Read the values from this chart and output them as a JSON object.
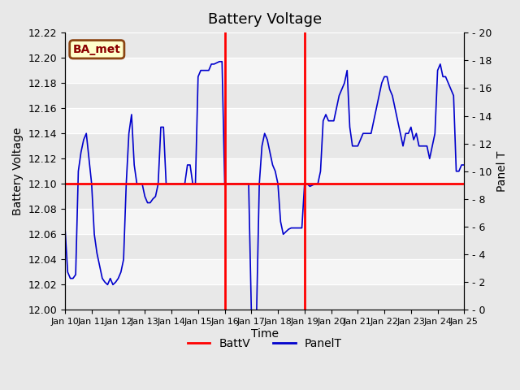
{
  "title": "Battery Voltage",
  "xlabel": "Time",
  "ylabel_left": "Battery Voltage",
  "ylabel_right": "Panel T",
  "ylim_left": [
    12.0,
    12.22
  ],
  "ylim_right": [
    0,
    20
  ],
  "yticks_left": [
    12.0,
    12.02,
    12.04,
    12.06,
    12.08,
    12.1,
    12.12,
    12.14,
    12.16,
    12.18,
    12.2,
    12.22
  ],
  "yticks_right": [
    0,
    2,
    4,
    6,
    8,
    10,
    12,
    14,
    16,
    18,
    20
  ],
  "xlim": [
    0,
    15
  ],
  "xtick_labels": [
    "Jan 10",
    "Jan 11",
    "Jan 12",
    "Jan 13",
    "Jan 14",
    "Jan 15",
    "Jan 16",
    "Jan 17",
    "Jan 18",
    "Jan 19",
    "Jan 20",
    "Jan 21",
    "Jan 22",
    "Jan 23",
    "Jan 24",
    "Jan 25"
  ],
  "crosshair_x1": 6,
  "crosshair_x2": 9,
  "crosshair_y": 12.1,
  "bg_color": "#e8e8e8",
  "band_color": "#f5f5f5",
  "label_box_text": "BA_met",
  "label_box_bg": "#ffffcc",
  "label_box_border": "#8B4513",
  "panel_t_color": "#0000cc",
  "battv_color": "#ff0000",
  "panel_t_data_x": [
    0,
    0.1,
    0.2,
    0.3,
    0.4,
    0.5,
    0.6,
    0.7,
    0.8,
    0.9,
    1.0,
    1.1,
    1.2,
    1.3,
    1.4,
    1.5,
    1.6,
    1.7,
    1.8,
    1.9,
    2.0,
    2.1,
    2.2,
    2.3,
    2.4,
    2.5,
    2.6,
    2.7,
    2.8,
    2.9,
    3.0,
    3.1,
    3.2,
    3.3,
    3.4,
    3.5,
    3.6,
    3.7,
    3.8,
    3.9,
    4.0,
    4.1,
    4.2,
    4.3,
    4.4,
    4.5,
    4.6,
    4.7,
    4.8,
    4.9,
    5.0,
    5.1,
    5.2,
    5.3,
    5.4,
    5.5,
    5.6,
    5.7,
    5.8,
    5.9,
    6.0,
    6.1,
    6.2,
    6.3,
    6.4,
    6.5,
    6.6,
    6.7,
    6.8,
    6.9,
    7.0,
    7.1,
    7.2,
    7.3,
    7.4,
    7.5,
    7.6,
    7.7,
    7.8,
    7.9,
    8.0,
    8.1,
    8.2,
    8.3,
    8.4,
    8.5,
    8.6,
    8.7,
    8.8,
    8.9,
    9.0,
    9.1,
    9.2,
    9.3,
    9.4,
    9.5,
    9.6,
    9.7,
    9.8,
    9.9,
    10.0,
    10.1,
    10.2,
    10.3,
    10.4,
    10.5,
    10.6,
    10.7,
    10.8,
    10.9,
    11.0,
    11.1,
    11.2,
    11.3,
    11.4,
    11.5,
    11.6,
    11.7,
    11.8,
    11.9,
    12.0,
    12.1,
    12.2,
    12.3,
    12.4,
    12.5,
    12.6,
    12.7,
    12.8,
    12.9,
    13.0,
    13.1,
    13.2,
    13.3,
    13.4,
    13.5,
    13.6,
    13.7,
    13.8,
    13.9,
    14.0,
    14.1,
    14.2,
    14.3,
    14.4,
    14.5,
    14.6,
    14.7,
    14.8,
    14.9,
    15.0
  ],
  "panel_t_data_y": [
    12.065,
    12.03,
    12.025,
    12.025,
    12.028,
    12.11,
    12.125,
    12.135,
    12.14,
    12.12,
    12.1,
    12.06,
    12.045,
    12.035,
    12.025,
    12.022,
    12.02,
    12.025,
    12.02,
    12.022,
    12.025,
    12.03,
    12.04,
    12.1,
    12.14,
    12.155,
    12.115,
    12.1,
    12.1,
    12.1,
    12.09,
    12.085,
    12.085,
    12.088,
    12.09,
    12.1,
    12.145,
    12.145,
    12.1,
    12.1,
    12.1,
    12.1,
    12.1,
    12.1,
    12.1,
    12.1,
    12.115,
    12.115,
    12.1,
    12.1,
    12.185,
    12.19,
    12.19,
    12.19,
    12.19,
    12.195,
    12.195,
    12.196,
    12.197,
    12.197,
    12.1,
    12.1,
    12.1,
    12.1,
    12.1,
    12.1,
    12.1,
    12.1,
    12.1,
    12.1,
    12.0,
    11.995,
    12.0,
    12.1,
    12.13,
    12.14,
    12.135,
    12.125,
    12.115,
    12.11,
    12.1,
    12.07,
    12.06,
    12.062,
    12.064,
    12.065,
    12.065,
    12.065,
    12.065,
    12.065,
    12.1,
    12.1,
    12.098,
    12.099,
    12.1,
    12.1,
    12.11,
    12.15,
    12.155,
    12.15,
    12.15,
    12.15,
    12.16,
    12.17,
    12.175,
    12.18,
    12.19,
    12.145,
    12.13,
    12.13,
    12.13,
    12.135,
    12.14,
    12.14,
    12.14,
    12.14,
    12.15,
    12.16,
    12.17,
    12.18,
    12.185,
    12.185,
    12.175,
    12.17,
    12.16,
    12.15,
    12.14,
    12.13,
    12.14,
    12.14,
    12.145,
    12.135,
    12.14,
    12.13,
    12.13,
    12.13,
    12.13,
    12.12,
    12.13,
    12.14,
    12.19,
    12.195,
    12.185,
    12.185,
    12.18,
    12.175,
    12.17,
    12.11,
    12.11,
    12.115,
    12.115
  ]
}
